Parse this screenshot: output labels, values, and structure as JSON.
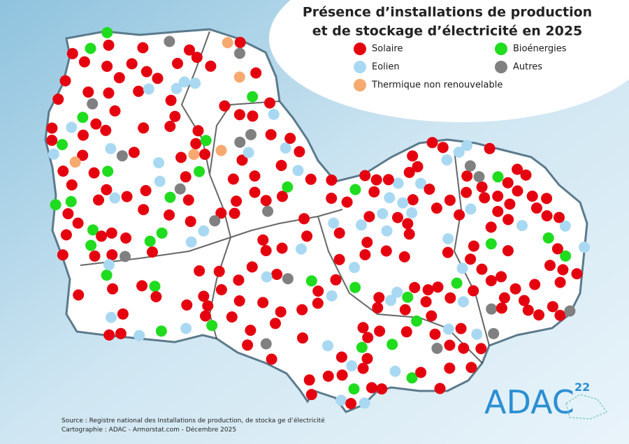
{
  "header": {
    "title": [
      "Présence d’installations de production",
      "et de stockage d’électricité en 2025"
    ]
  },
  "legend": {
    "items": [
      {
        "name": "Solaire",
        "color": "#e5000f"
      },
      {
        "name": "Eolien",
        "color": "#a9d9f2"
      },
      {
        "name": "Thermique non renouvelable",
        "color": "#f7aa70"
      },
      {
        "name": "Bioénergies",
        "color": "#1fdc1f"
      },
      {
        "name": "Autres",
        "color": "#808080"
      }
    ]
  },
  "footer": {
    "source": "Source : Registre national des Installations de production, de stocka ge d’électricité",
    "credits": "Cartographie : ADAC - Armorstat.com - Décembre 2025"
  },
  "logo": {
    "text": "ADAC",
    "number": "22"
  }
}
